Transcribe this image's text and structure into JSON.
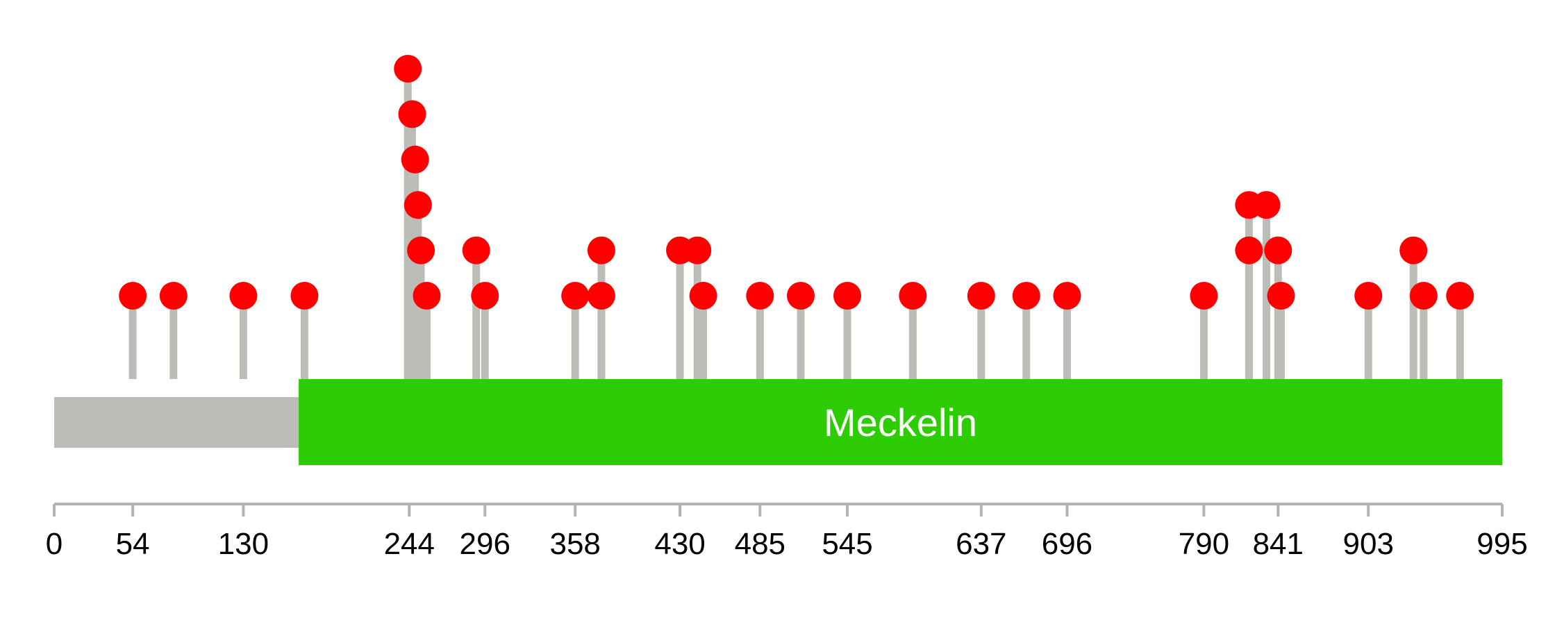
{
  "protein": {
    "length": 995,
    "backbone_color": "#bdbdb7",
    "domains": [
      {
        "name": "Meckelin",
        "start": 168,
        "end": 995,
        "color": "#2ecc04"
      }
    ]
  },
  "axis": {
    "min": 0,
    "max": 995,
    "ticks": [
      0,
      54,
      130,
      244,
      296,
      358,
      430,
      485,
      545,
      637,
      696,
      790,
      841,
      903,
      995
    ]
  },
  "mutations": [
    {
      "position": 54,
      "count": 1
    },
    {
      "position": 82,
      "count": 1
    },
    {
      "position": 130,
      "count": 1
    },
    {
      "position": 172,
      "count": 1
    },
    {
      "position": 243,
      "count": 6
    },
    {
      "position": 246,
      "count": 5
    },
    {
      "position": 248,
      "count": 4
    },
    {
      "position": 250,
      "count": 3
    },
    {
      "position": 252,
      "count": 2
    },
    {
      "position": 256,
      "count": 1
    },
    {
      "position": 290,
      "count": 2
    },
    {
      "position": 296,
      "count": 1
    },
    {
      "position": 358,
      "count": 1
    },
    {
      "position": 376,
      "count": 1
    },
    {
      "position": 376,
      "count": 2
    },
    {
      "position": 430,
      "count": 2
    },
    {
      "position": 442,
      "count": 2
    },
    {
      "position": 446,
      "count": 1
    },
    {
      "position": 485,
      "count": 1
    },
    {
      "position": 513,
      "count": 1
    },
    {
      "position": 545,
      "count": 1
    },
    {
      "position": 590,
      "count": 1
    },
    {
      "position": 637,
      "count": 1
    },
    {
      "position": 668,
      "count": 1
    },
    {
      "position": 696,
      "count": 1
    },
    {
      "position": 790,
      "count": 1
    },
    {
      "position": 821,
      "count": 3
    },
    {
      "position": 821,
      "count": 2
    },
    {
      "position": 833,
      "count": 3
    },
    {
      "position": 841,
      "count": 2
    },
    {
      "position": 843,
      "count": 1
    },
    {
      "position": 903,
      "count": 1
    },
    {
      "position": 934,
      "count": 2
    },
    {
      "position": 941,
      "count": 1
    },
    {
      "position": 966,
      "count": 1
    }
  ],
  "colors": {
    "stem": "#bdbdb7",
    "marker": "#ff0000",
    "axis": "#b4b4ae"
  }
}
